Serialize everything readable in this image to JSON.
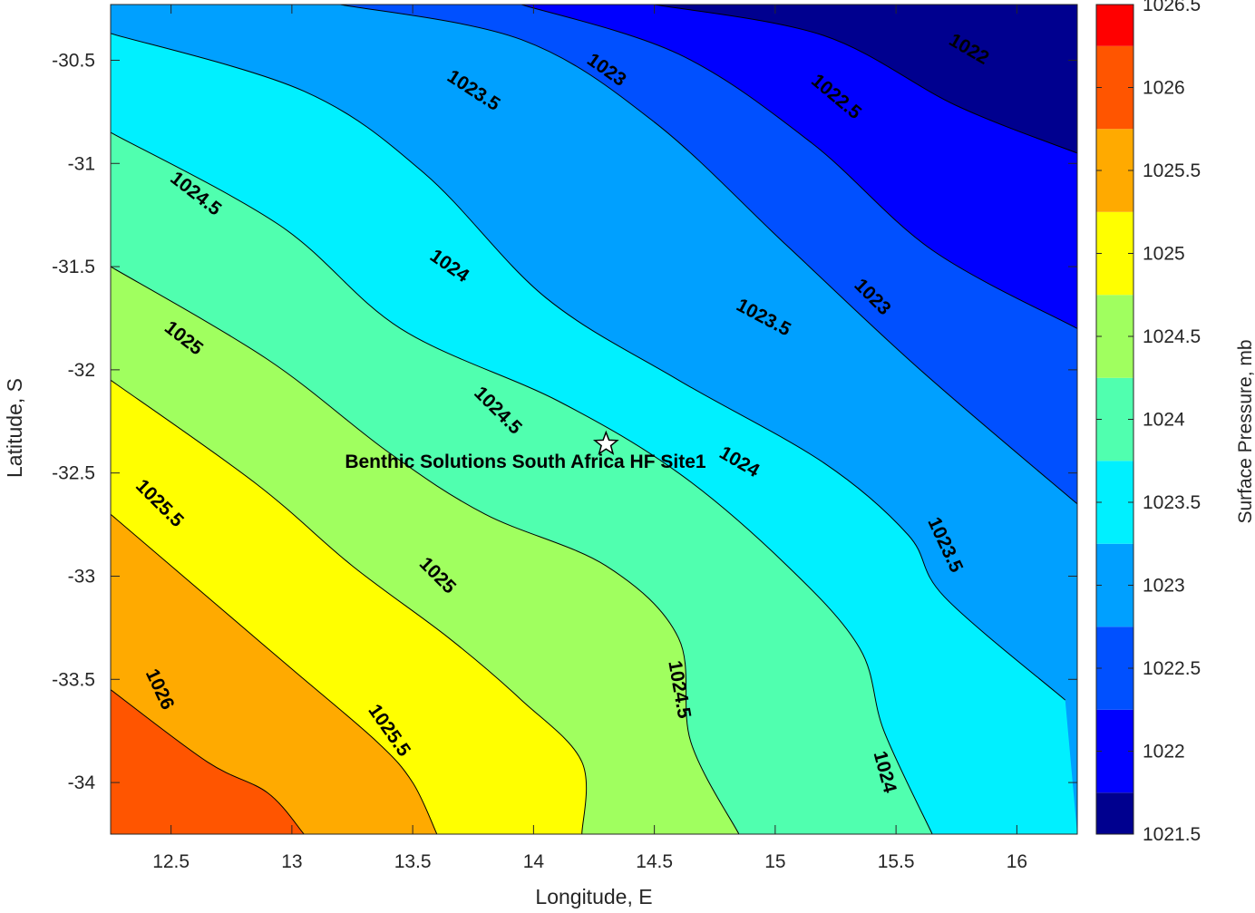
{
  "chart_data": {
    "type": "contourf",
    "xlabel": "Longitude, E",
    "ylabel": "Latitude, S",
    "colorbar_label": "Surface Pressure, mb",
    "xlim": [
      12.25,
      16.25
    ],
    "ylim": [
      -34.25,
      -30.23
    ],
    "xticks": [
      12.5,
      13,
      13.5,
      14,
      14.5,
      15,
      15.5,
      16
    ],
    "xtick_labels": [
      "12.5",
      "13",
      "13.5",
      "14",
      "14.5",
      "15",
      "15.5",
      "16"
    ],
    "yticks": [
      -30.5,
      -31,
      -31.5,
      -32,
      -32.5,
      -33,
      -33.5,
      -34
    ],
    "ytick_labels": [
      "-30.5",
      "-31",
      "-31.5",
      "-32",
      "-32.5",
      "-33",
      "-33.5",
      "-34"
    ],
    "colorbar_range": [
      1021.5,
      1026.5
    ],
    "colorbar_ticks": [
      1021.5,
      1022,
      1022.5,
      1023,
      1023.5,
      1024,
      1024.5,
      1025,
      1025.5,
      1026,
      1026.5
    ],
    "colorbar_tick_labels": [
      "1021.5",
      "1022",
      "1022.5",
      "1023",
      "1023.5",
      "1024",
      "1024.5",
      "1025",
      "1025.5",
      "1026",
      "1026.5"
    ],
    "colorbar_colors": [
      "#00008f",
      "#0000ff",
      "#0050ff",
      "#00a0ff",
      "#00f0ff",
      "#50ffaf",
      "#a0ff5f",
      "#ffff00",
      "#ffaa00",
      "#ff5500",
      "#ff0000"
    ],
    "contour_levels": [
      1022,
      1022.5,
      1023,
      1023.5,
      1024,
      1024.5,
      1025,
      1025.5,
      1026
    ],
    "contour_lines": [
      {
        "level": 1022,
        "points": [
          [
            14.5,
            -30.23
          ],
          [
            15.2,
            -30.38
          ],
          [
            15.75,
            -30.72
          ],
          [
            16.25,
            -30.95
          ]
        ]
      },
      {
        "level": 1022.5,
        "points": [
          [
            13.95,
            -30.23
          ],
          [
            14.6,
            -30.47
          ],
          [
            15.15,
            -30.9
          ],
          [
            15.65,
            -31.42
          ],
          [
            16.25,
            -31.8
          ]
        ]
      },
      {
        "level": 1023,
        "points": [
          [
            13.2,
            -30.23
          ],
          [
            13.95,
            -30.4
          ],
          [
            14.5,
            -30.8
          ],
          [
            15.05,
            -31.4
          ],
          [
            15.6,
            -32.0
          ],
          [
            16.25,
            -32.65
          ]
        ]
      },
      {
        "level": 1023.5,
        "points": [
          [
            12.25,
            -30.37
          ],
          [
            13.05,
            -30.65
          ],
          [
            13.55,
            -31.05
          ],
          [
            14.05,
            -31.65
          ],
          [
            14.6,
            -32.05
          ],
          [
            15.2,
            -32.45
          ],
          [
            15.55,
            -32.8
          ],
          [
            15.7,
            -33.1
          ],
          [
            16.2,
            -33.6
          ]
        ]
      },
      {
        "level": 1024,
        "points": [
          [
            12.25,
            -30.85
          ],
          [
            12.95,
            -31.3
          ],
          [
            13.45,
            -31.8
          ],
          [
            14.1,
            -32.15
          ],
          [
            14.6,
            -32.5
          ],
          [
            15.05,
            -32.95
          ],
          [
            15.35,
            -33.35
          ],
          [
            15.45,
            -33.75
          ],
          [
            15.65,
            -34.25
          ]
        ]
      },
      {
        "level": 1024.5,
        "points": [
          [
            12.25,
            -31.5
          ],
          [
            12.9,
            -31.95
          ],
          [
            13.4,
            -32.4
          ],
          [
            13.8,
            -32.7
          ],
          [
            14.3,
            -32.95
          ],
          [
            14.6,
            -33.3
          ],
          [
            14.65,
            -33.8
          ],
          [
            14.85,
            -34.25
          ]
        ]
      },
      {
        "level": 1025,
        "points": [
          [
            12.25,
            -32.05
          ],
          [
            12.85,
            -32.55
          ],
          [
            13.25,
            -32.95
          ],
          [
            13.65,
            -33.3
          ],
          [
            13.95,
            -33.6
          ],
          [
            14.2,
            -33.9
          ],
          [
            14.2,
            -34.25
          ]
        ]
      },
      {
        "level": 1025.5,
        "points": [
          [
            12.25,
            -32.7
          ],
          [
            12.7,
            -33.15
          ],
          [
            13.0,
            -33.45
          ],
          [
            13.35,
            -33.8
          ],
          [
            13.5,
            -34.0
          ],
          [
            13.6,
            -34.25
          ]
        ]
      },
      {
        "level": 1026,
        "points": [
          [
            12.25,
            -33.55
          ],
          [
            12.65,
            -33.9
          ],
          [
            12.9,
            -34.05
          ],
          [
            13.05,
            -34.25
          ]
        ]
      }
    ],
    "contour_labels": [
      {
        "text": "1022",
        "x": 15.8,
        "y": -30.45,
        "angle": 30
      },
      {
        "text": "1022.5",
        "x": 15.25,
        "y": -30.68,
        "angle": 40
      },
      {
        "text": "1023",
        "x": 14.3,
        "y": -30.55,
        "angle": 35
      },
      {
        "text": "1023.5",
        "x": 13.75,
        "y": -30.65,
        "angle": 33
      },
      {
        "text": "1023",
        "x": 15.4,
        "y": -31.65,
        "angle": 45
      },
      {
        "text": "1023.5",
        "x": 14.95,
        "y": -31.75,
        "angle": 28
      },
      {
        "text": "1024.5",
        "x": 12.6,
        "y": -31.15,
        "angle": 38
      },
      {
        "text": "1024",
        "x": 13.65,
        "y": -31.5,
        "angle": 35
      },
      {
        "text": "1025",
        "x": 12.55,
        "y": -31.85,
        "angle": 38
      },
      {
        "text": "1024.5",
        "x": 13.85,
        "y": -32.2,
        "angle": 45
      },
      {
        "text": "1024",
        "x": 14.85,
        "y": -32.45,
        "angle": 30
      },
      {
        "text": "1025.5",
        "x": 12.45,
        "y": -32.65,
        "angle": 45
      },
      {
        "text": "1023.5",
        "x": 15.7,
        "y": -32.85,
        "angle": 65
      },
      {
        "text": "1025",
        "x": 13.6,
        "y": -33.0,
        "angle": 45
      },
      {
        "text": "1026",
        "x": 12.45,
        "y": -33.55,
        "angle": 65
      },
      {
        "text": "1024.5",
        "x": 14.6,
        "y": -33.55,
        "angle": 80
      },
      {
        "text": "1025.5",
        "x": 13.4,
        "y": -33.75,
        "angle": 55
      },
      {
        "text": "1024",
        "x": 15.45,
        "y": -33.95,
        "angle": 75
      }
    ],
    "site": {
      "name": "Benthic Solutions South Africa HF Site1",
      "lon": 14.3,
      "lat": -32.36
    }
  }
}
